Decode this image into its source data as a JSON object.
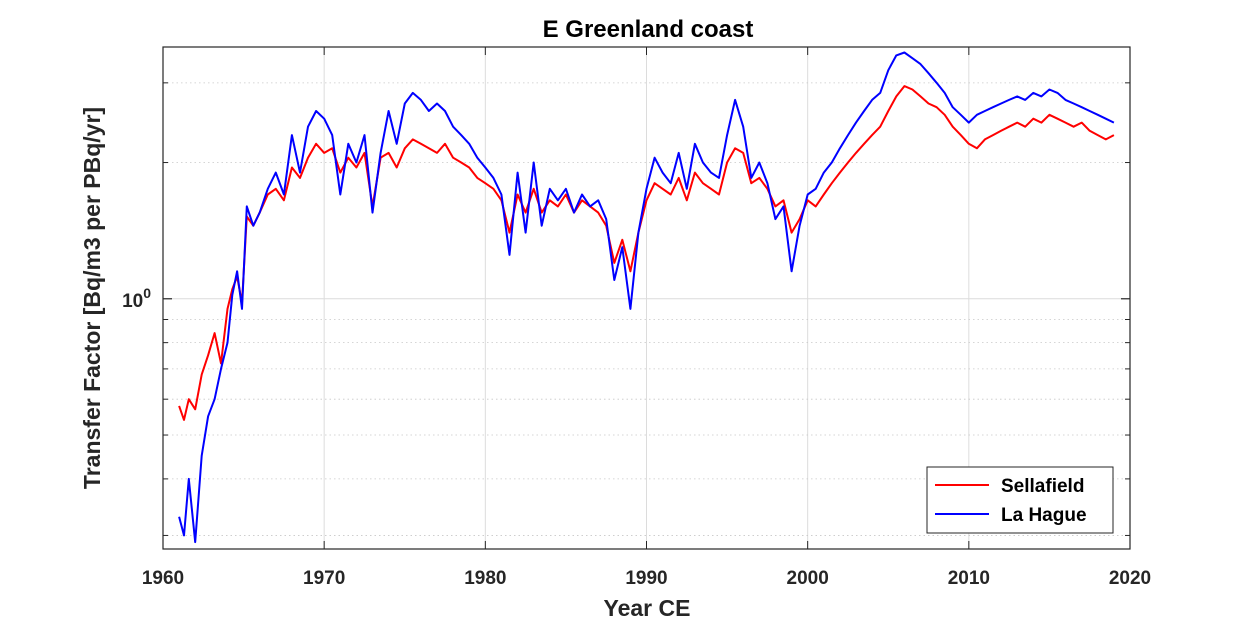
{
  "chart_data": {
    "type": "line",
    "title": "E Greenland coast",
    "xlabel": "Year CE",
    "ylabel": "Transfer Factor [Bq/m3 per PBq/yr]",
    "xlim": [
      1960,
      2020
    ],
    "x_ticks": [
      1960,
      1970,
      1980,
      1990,
      2000,
      2010,
      2020
    ],
    "x_tick_labels": [
      "1960",
      "1970",
      "1980",
      "1990",
      "2000",
      "2010",
      "2020"
    ],
    "y_scale": "log",
    "ylim": [
      0.28,
      3.6
    ],
    "y_ticks": [
      1
    ],
    "y_tick_labels": [
      "10^0"
    ],
    "grid": true,
    "legend_position": "bottom-right",
    "colors": {
      "Sellafield": "#ff0000",
      "La Hague": "#0000ff",
      "axis": "#262626",
      "grid": "#dcdcdc"
    },
    "series": [
      {
        "name": "Sellafield",
        "color": "#ff0000",
        "x": [
          1961.0,
          1961.3,
          1961.6,
          1962.0,
          1962.4,
          1962.8,
          1963.2,
          1963.6,
          1964.0,
          1964.3,
          1964.6,
          1964.9,
          1965.2,
          1965.6,
          1966.0,
          1966.5,
          1967.0,
          1967.5,
          1968.0,
          1968.5,
          1969.0,
          1969.5,
          1970.0,
          1970.5,
          1971.0,
          1971.5,
          1972.0,
          1972.5,
          1973.0,
          1973.5,
          1974.0,
          1974.5,
          1975.0,
          1975.5,
          1976.0,
          1976.5,
          1977.0,
          1977.5,
          1978.0,
          1978.5,
          1979.0,
          1979.5,
          1980.0,
          1980.5,
          1981.0,
          1981.5,
          1982.0,
          1982.5,
          1983.0,
          1983.5,
          1984.0,
          1984.5,
          1985.0,
          1985.5,
          1986.0,
          1986.5,
          1987.0,
          1987.5,
          1988.0,
          1988.5,
          1989.0,
          1989.5,
          1990.0,
          1990.5,
          1991.0,
          1991.5,
          1992.0,
          1992.5,
          1993.0,
          1993.5,
          1994.0,
          1994.5,
          1995.0,
          1995.5,
          1996.0,
          1996.5,
          1997.0,
          1997.5,
          1998.0,
          1998.5,
          1999.0,
          1999.5,
          2000.0,
          2000.5,
          2001.0,
          2001.5,
          2002.0,
          2002.5,
          2003.0,
          2003.5,
          2004.0,
          2004.5,
          2005.0,
          2005.5,
          2006.0,
          2006.5,
          2007.0,
          2007.5,
          2008.0,
          2008.5,
          2009.0,
          2009.5,
          2010.0,
          2010.5,
          2011.0,
          2011.5,
          2012.0,
          2012.5,
          2013.0,
          2013.5,
          2014.0,
          2014.5,
          2015.0,
          2015.5,
          2016.0,
          2016.5,
          2017.0,
          2017.5,
          2018.0,
          2018.5,
          2019.0
        ],
        "y": [
          0.58,
          0.54,
          0.6,
          0.57,
          0.68,
          0.75,
          0.84,
          0.72,
          0.95,
          1.05,
          1.12,
          0.98,
          1.52,
          1.45,
          1.55,
          1.7,
          1.75,
          1.65,
          1.95,
          1.85,
          2.05,
          2.2,
          2.1,
          2.15,
          1.9,
          2.05,
          1.95,
          2.1,
          1.6,
          2.05,
          2.1,
          1.95,
          2.15,
          2.25,
          2.2,
          2.15,
          2.1,
          2.2,
          2.05,
          2.0,
          1.95,
          1.85,
          1.8,
          1.75,
          1.65,
          1.4,
          1.7,
          1.55,
          1.75,
          1.55,
          1.65,
          1.6,
          1.7,
          1.55,
          1.65,
          1.6,
          1.55,
          1.45,
          1.2,
          1.35,
          1.15,
          1.4,
          1.65,
          1.8,
          1.75,
          1.7,
          1.85,
          1.65,
          1.9,
          1.8,
          1.75,
          1.7,
          2.0,
          2.15,
          2.1,
          1.8,
          1.85,
          1.75,
          1.6,
          1.65,
          1.4,
          1.5,
          1.65,
          1.6,
          1.7,
          1.8,
          1.9,
          2.0,
          2.1,
          2.2,
          2.3,
          2.4,
          2.6,
          2.8,
          2.95,
          2.9,
          2.8,
          2.7,
          2.65,
          2.55,
          2.4,
          2.3,
          2.2,
          2.15,
          2.25,
          2.3,
          2.35,
          2.4,
          2.45,
          2.4,
          2.5,
          2.45,
          2.55,
          2.5,
          2.45,
          2.4,
          2.45,
          2.35,
          2.3,
          2.25,
          2.3
        ]
      },
      {
        "name": "La Hague",
        "color": "#0000ff",
        "x": [
          1961.0,
          1961.3,
          1961.6,
          1962.0,
          1962.4,
          1962.8,
          1963.2,
          1963.6,
          1964.0,
          1964.3,
          1964.6,
          1964.9,
          1965.2,
          1965.6,
          1966.0,
          1966.5,
          1967.0,
          1967.5,
          1968.0,
          1968.5,
          1969.0,
          1969.5,
          1970.0,
          1970.5,
          1971.0,
          1971.5,
          1972.0,
          1972.5,
          1973.0,
          1973.5,
          1974.0,
          1974.5,
          1975.0,
          1975.5,
          1976.0,
          1976.5,
          1977.0,
          1977.5,
          1978.0,
          1978.5,
          1979.0,
          1979.5,
          1980.0,
          1980.5,
          1981.0,
          1981.5,
          1982.0,
          1982.5,
          1983.0,
          1983.5,
          1984.0,
          1984.5,
          1985.0,
          1985.5,
          1986.0,
          1986.5,
          1987.0,
          1987.5,
          1988.0,
          1988.5,
          1989.0,
          1989.5,
          1990.0,
          1990.5,
          1991.0,
          1991.5,
          1992.0,
          1992.5,
          1993.0,
          1993.5,
          1994.0,
          1994.5,
          1995.0,
          1995.5,
          1996.0,
          1996.5,
          1997.0,
          1997.5,
          1998.0,
          1998.5,
          1999.0,
          1999.5,
          2000.0,
          2000.5,
          2001.0,
          2001.5,
          2002.0,
          2002.5,
          2003.0,
          2003.5,
          2004.0,
          2004.5,
          2005.0,
          2005.5,
          2006.0,
          2006.5,
          2007.0,
          2007.5,
          2008.0,
          2008.5,
          2009.0,
          2009.5,
          2010.0,
          2010.5,
          2011.0,
          2011.5,
          2012.0,
          2012.5,
          2013.0,
          2013.5,
          2014.0,
          2014.5,
          2015.0,
          2015.5,
          2016.0,
          2016.5,
          2017.0,
          2017.5,
          2018.0,
          2018.5,
          2019.0
        ],
        "y": [
          0.33,
          0.3,
          0.4,
          0.29,
          0.45,
          0.55,
          0.6,
          0.7,
          0.8,
          1.02,
          1.15,
          0.95,
          1.6,
          1.45,
          1.55,
          1.75,
          1.9,
          1.7,
          2.3,
          1.9,
          2.4,
          2.6,
          2.5,
          2.3,
          1.7,
          2.2,
          2.0,
          2.3,
          1.55,
          2.1,
          2.6,
          2.2,
          2.7,
          2.85,
          2.75,
          2.6,
          2.7,
          2.6,
          2.4,
          2.3,
          2.2,
          2.05,
          1.95,
          1.85,
          1.7,
          1.25,
          1.9,
          1.4,
          2.0,
          1.45,
          1.75,
          1.65,
          1.75,
          1.55,
          1.7,
          1.6,
          1.65,
          1.5,
          1.1,
          1.3,
          0.95,
          1.4,
          1.75,
          2.05,
          1.9,
          1.8,
          2.1,
          1.75,
          2.2,
          2.0,
          1.9,
          1.85,
          2.3,
          2.75,
          2.4,
          1.85,
          2.0,
          1.8,
          1.5,
          1.6,
          1.15,
          1.45,
          1.7,
          1.75,
          1.9,
          2.0,
          2.15,
          2.3,
          2.45,
          2.6,
          2.75,
          2.85,
          3.2,
          3.45,
          3.5,
          3.4,
          3.3,
          3.15,
          3.0,
          2.85,
          2.65,
          2.55,
          2.45,
          2.55,
          2.6,
          2.65,
          2.7,
          2.75,
          2.8,
          2.75,
          2.85,
          2.8,
          2.9,
          2.85,
          2.75,
          2.7,
          2.65,
          2.6,
          2.55,
          2.5,
          2.45
        ]
      }
    ]
  }
}
